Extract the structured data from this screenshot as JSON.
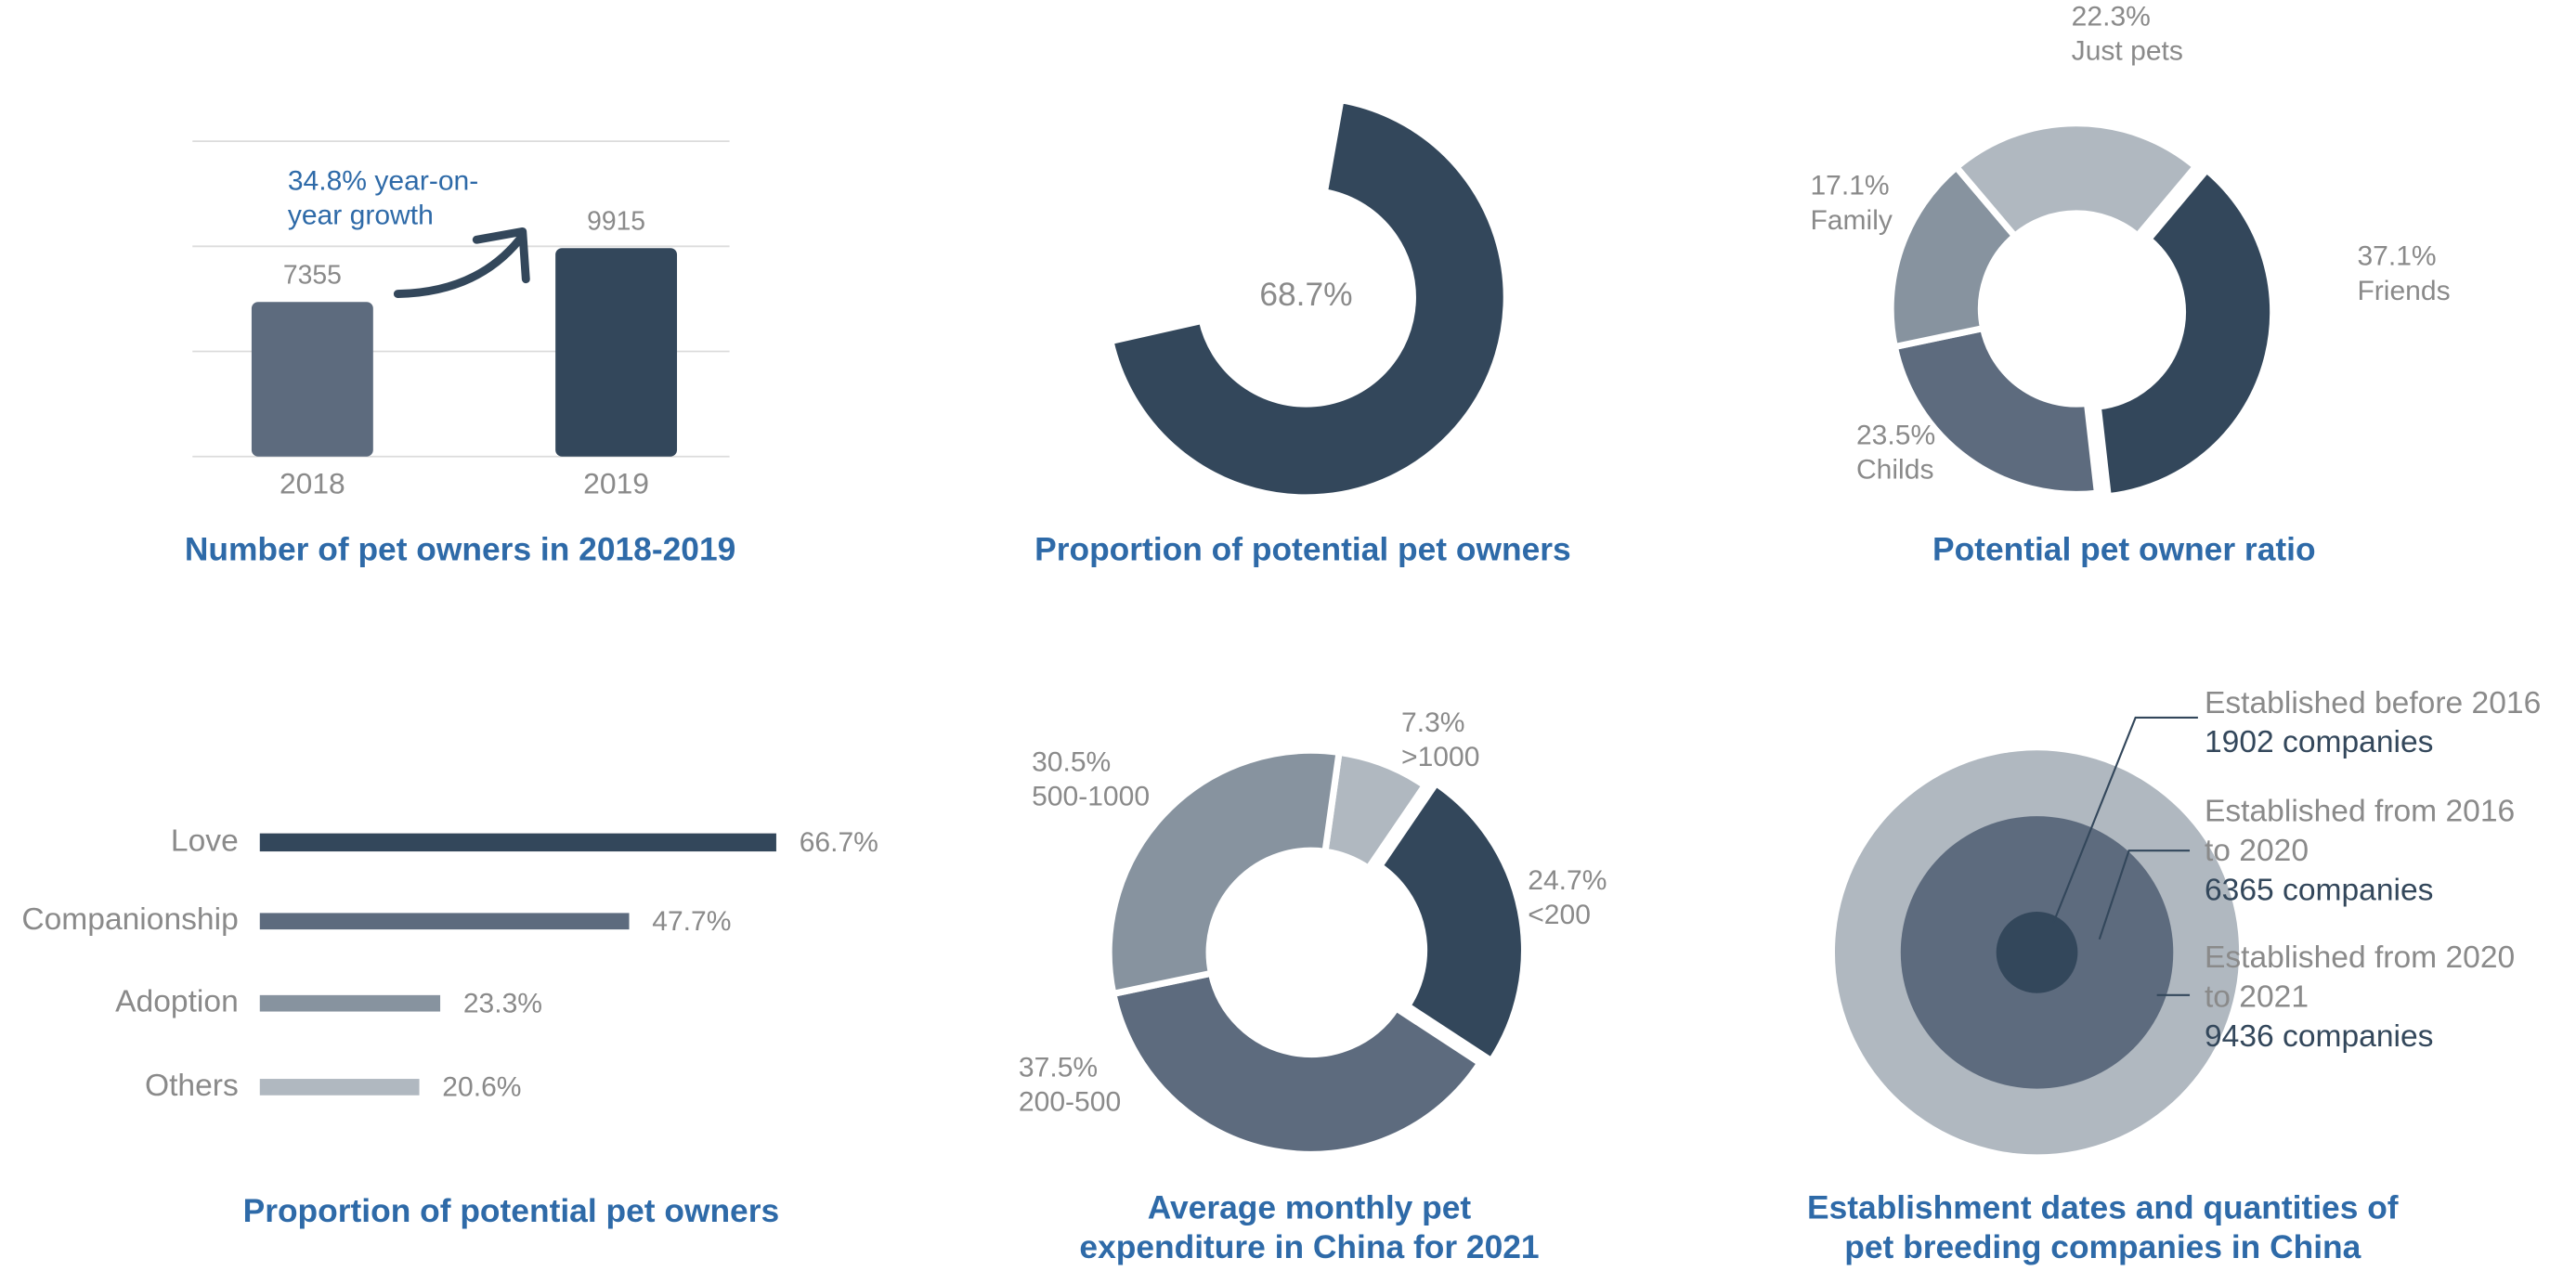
{
  "chart_data": [
    {
      "type": "bar",
      "title": "Number of pet owners in 2018-2019",
      "categories": [
        "2018",
        "2019"
      ],
      "values": [
        7355,
        9915
      ],
      "colors": [
        "#5d6b7e",
        "#33475b"
      ],
      "annotation": "34.8% year-on-\nyear growth",
      "ylim": [
        0,
        15000
      ],
      "gridlines": [
        0,
        5000,
        10000,
        15000
      ]
    },
    {
      "type": "donut",
      "title": "Proportion of potential pet owners",
      "values": [
        68.7
      ],
      "value_labels": [
        "68.7%"
      ],
      "colors": [
        "#33475b"
      ]
    },
    {
      "type": "donut",
      "title": "Potential pet owner ratio",
      "categories": [
        "Friends",
        "Childs",
        "Family",
        "Just pets"
      ],
      "values": [
        37.1,
        23.5,
        17.1,
        22.3
      ],
      "value_labels": [
        "37.1%",
        "23.5%",
        "17.1%",
        "22.3%"
      ],
      "colors": [
        "#33475b",
        "#5d6b7e",
        "#87939f",
        "#b0b8c0"
      ]
    },
    {
      "type": "barh",
      "title": "Proportion of potential pet owners",
      "categories": [
        "Love",
        "Companionship",
        "Adoption",
        "Others"
      ],
      "values": [
        66.7,
        47.7,
        23.3,
        20.6
      ],
      "value_labels": [
        "66.7%",
        "47.7%",
        "23.3%",
        "20.6%"
      ],
      "colors": [
        "#33475b",
        "#5d6b7e",
        "#87939f",
        "#b0b8c0"
      ],
      "xlim": [
        0,
        70
      ]
    },
    {
      "type": "donut",
      "title": "Average monthly pet\nexpenditure in China for 2021",
      "categories": [
        ">1000",
        "<200",
        "200-500",
        "500-1000"
      ],
      "values": [
        7.3,
        24.7,
        37.5,
        30.5
      ],
      "value_labels": [
        "7.3%",
        "24.7%",
        "37.5%",
        "30.5%"
      ],
      "colors": [
        "#b0b8c0",
        "#33475b",
        "#5d6b7e",
        "#87939f"
      ]
    },
    {
      "type": "nested-circle",
      "title": "Establishment dates and quantities of\npet breeding companies in China",
      "categories": [
        "Established before 2016",
        "Established from 2016\nto 2020",
        "Established from 2020\nto 2021"
      ],
      "values": [
        1902,
        6365,
        9436
      ],
      "value_labels": [
        "1902 companies",
        "6365 companies",
        "9436 companies"
      ],
      "colors": [
        "#33475b",
        "#5d6b7e",
        "#b0b8c0"
      ]
    }
  ]
}
